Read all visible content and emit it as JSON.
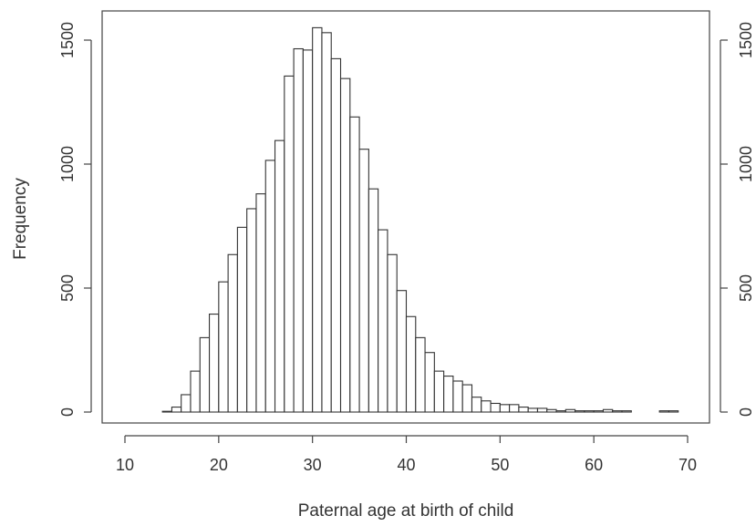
{
  "chart_data": {
    "type": "bar",
    "title": "",
    "xlabel": "Paternal age at birth of child",
    "ylabel": "Frequency",
    "xlim": [
      10,
      70
    ],
    "ylim": [
      0,
      1500
    ],
    "bin_width": 1,
    "bin_starts": [
      10,
      11,
      12,
      13,
      14,
      15,
      16,
      17,
      18,
      19,
      20,
      21,
      22,
      23,
      24,
      25,
      26,
      27,
      28,
      29,
      30,
      31,
      32,
      33,
      34,
      35,
      36,
      37,
      38,
      39,
      40,
      41,
      42,
      43,
      44,
      45,
      46,
      47,
      48,
      49,
      50,
      51,
      52,
      53,
      54,
      55,
      56,
      57,
      58,
      59,
      60,
      61,
      62,
      63,
      64,
      65,
      66,
      67,
      68,
      69
    ],
    "values": [
      0,
      0,
      0,
      0,
      3,
      20,
      70,
      165,
      300,
      395,
      525,
      635,
      745,
      820,
      880,
      1015,
      1095,
      1355,
      1465,
      1460,
      1550,
      1530,
      1425,
      1345,
      1190,
      1060,
      900,
      735,
      635,
      490,
      385,
      300,
      240,
      165,
      145,
      125,
      110,
      60,
      45,
      35,
      30,
      30,
      20,
      15,
      15,
      10,
      5,
      10,
      5,
      5,
      5,
      10,
      5,
      5,
      0,
      0,
      0,
      5,
      5,
      0
    ],
    "x_ticks": [
      10,
      20,
      30,
      40,
      50,
      60,
      70
    ],
    "y_ticks": [
      0,
      500,
      1000,
      1500
    ],
    "grid": false,
    "right_axis": true,
    "legend": "none"
  }
}
